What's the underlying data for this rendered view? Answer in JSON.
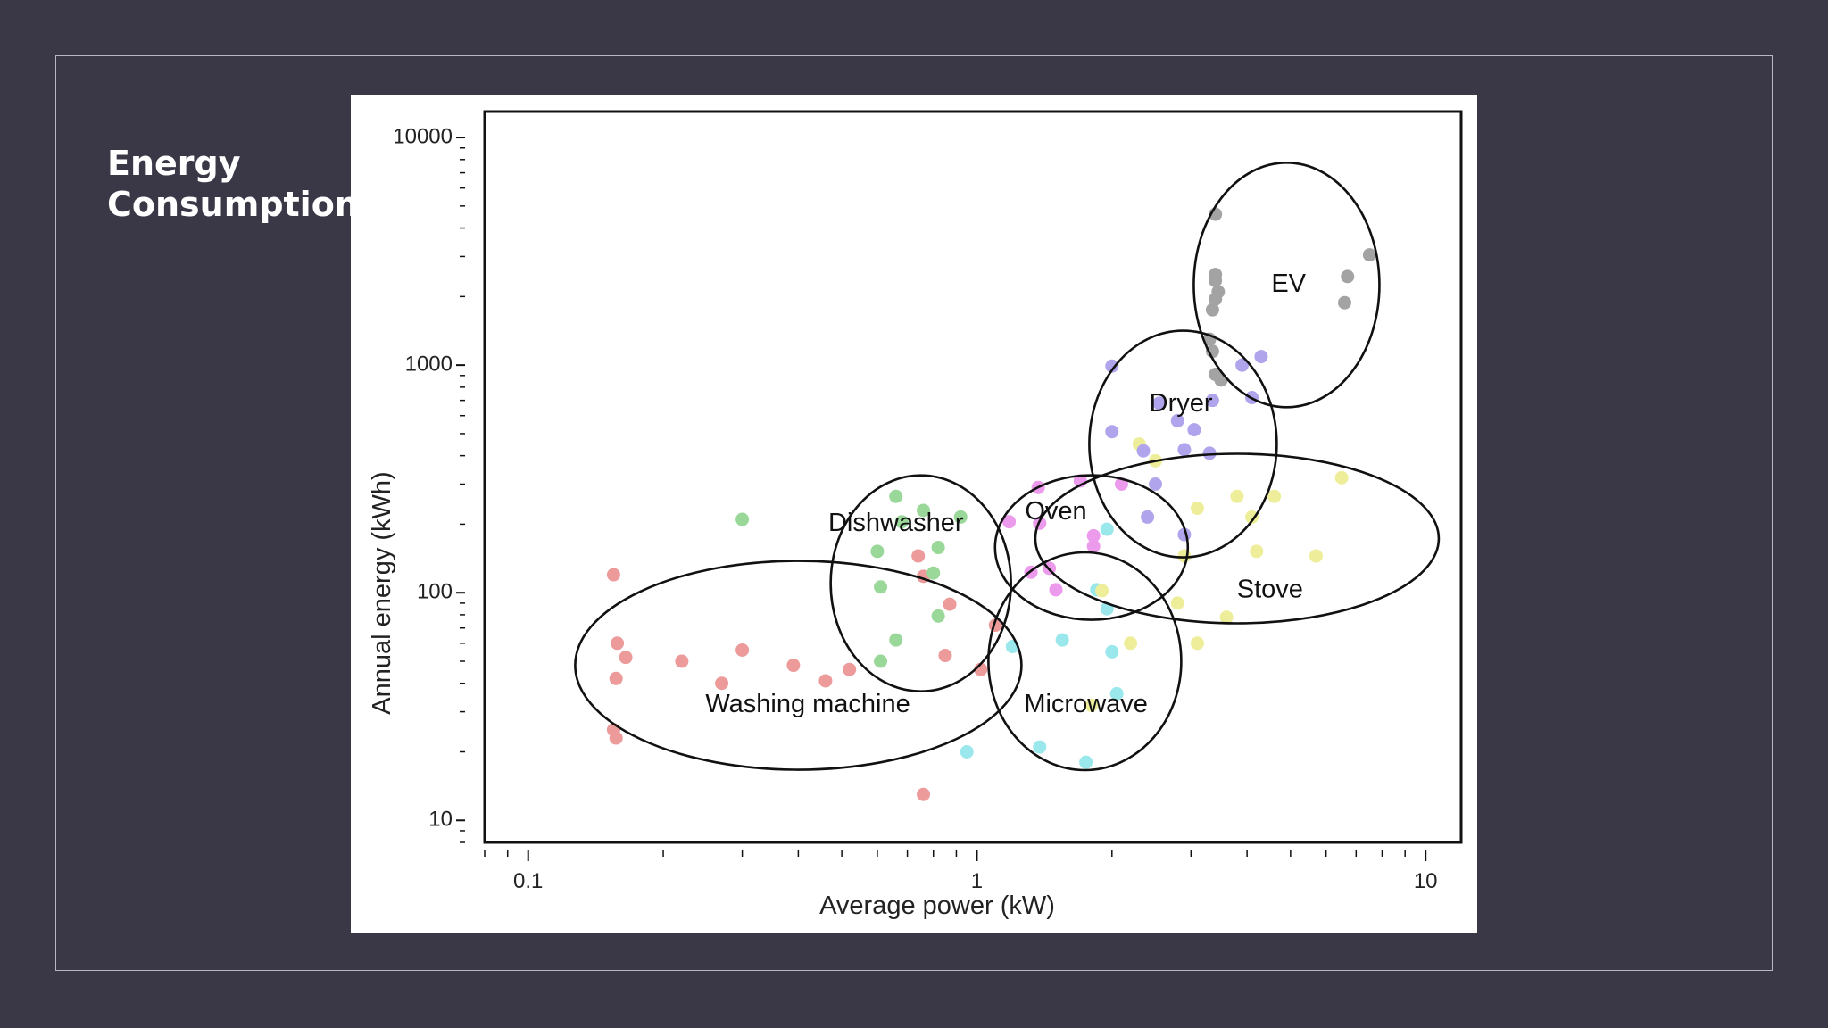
{
  "slide": {
    "title_line1": "Energy",
    "title_line2": "Consumption"
  },
  "chart_data": {
    "type": "scatter",
    "xlabel": "Average power (kW)",
    "ylabel": "Annual energy (kWh)",
    "x_scale": "log",
    "y_scale": "log",
    "xlim": [
      0.08,
      12
    ],
    "ylim": [
      8,
      13000
    ],
    "x_ticks": [
      {
        "value": 0.1,
        "label": "0.1"
      },
      {
        "value": 1,
        "label": "1"
      },
      {
        "value": 10,
        "label": "10"
      }
    ],
    "y_ticks": [
      {
        "value": 10,
        "label": "10"
      },
      {
        "value": 100,
        "label": "100"
      },
      {
        "value": 1000,
        "label": "1000"
      },
      {
        "value": 10000,
        "label": "10000"
      }
    ],
    "grid": false,
    "legend": "none",
    "series": [
      {
        "group": "washing-machine",
        "color": "#ec9a9a",
        "points": [
          [
            0.155,
            120
          ],
          [
            0.158,
            60
          ],
          [
            0.165,
            52
          ],
          [
            0.157,
            42
          ],
          [
            0.155,
            25
          ],
          [
            0.157,
            23
          ],
          [
            0.22,
            50
          ],
          [
            0.27,
            40
          ],
          [
            0.3,
            56
          ],
          [
            0.39,
            48
          ],
          [
            0.46,
            41
          ],
          [
            0.52,
            46
          ],
          [
            0.74,
            145
          ],
          [
            0.76,
            118
          ],
          [
            0.87,
            89
          ],
          [
            0.85,
            53
          ],
          [
            1.02,
            46
          ],
          [
            1.1,
            72
          ],
          [
            0.76,
            13
          ]
        ]
      },
      {
        "group": "dishwasher",
        "color": "#9ad89a",
        "points": [
          [
            0.3,
            210
          ],
          [
            0.66,
            265
          ],
          [
            0.76,
            230
          ],
          [
            0.68,
            205
          ],
          [
            0.6,
            152
          ],
          [
            0.82,
            158
          ],
          [
            0.8,
            122
          ],
          [
            0.61,
            106
          ],
          [
            0.82,
            79
          ],
          [
            0.66,
            62
          ],
          [
            0.61,
            50
          ],
          [
            0.92,
            215
          ]
        ]
      },
      {
        "group": "oven",
        "color": "#ec9aec",
        "points": [
          [
            1.37,
            290
          ],
          [
            1.18,
            205
          ],
          [
            1.38,
            202
          ],
          [
            1.82,
            178
          ],
          [
            1.45,
            128
          ],
          [
            1.32,
            123
          ],
          [
            1.5,
            103
          ],
          [
            1.82,
            160
          ],
          [
            1.7,
            310
          ],
          [
            2.1,
            300
          ]
        ]
      },
      {
        "group": "microwave",
        "color": "#9ae8ec",
        "points": [
          [
            1.2,
            58
          ],
          [
            1.55,
            62
          ],
          [
            1.85,
            103
          ],
          [
            1.95,
            85
          ],
          [
            2.0,
            55
          ],
          [
            2.05,
            36
          ],
          [
            1.38,
            21
          ],
          [
            0.95,
            20
          ],
          [
            1.75,
            18
          ],
          [
            1.95,
            190
          ]
        ]
      },
      {
        "group": "stove",
        "color": "#eeee9a",
        "points": [
          [
            2.3,
            450
          ],
          [
            2.5,
            380
          ],
          [
            3.1,
            235
          ],
          [
            3.8,
            265
          ],
          [
            4.6,
            265
          ],
          [
            6.5,
            320
          ],
          [
            4.1,
            215
          ],
          [
            4.2,
            152
          ],
          [
            5.7,
            145
          ],
          [
            2.9,
            145
          ],
          [
            2.8,
            90
          ],
          [
            3.6,
            78
          ],
          [
            3.1,
            60
          ],
          [
            2.2,
            60
          ],
          [
            1.9,
            102
          ],
          [
            1.8,
            32
          ]
        ]
      },
      {
        "group": "dryer",
        "color": "#b0a4ec",
        "points": [
          [
            2.0,
            990
          ],
          [
            2.55,
            680
          ],
          [
            2.8,
            570
          ],
          [
            3.05,
            520
          ],
          [
            2.0,
            510
          ],
          [
            2.35,
            420
          ],
          [
            2.9,
            425
          ],
          [
            3.3,
            410
          ],
          [
            3.35,
            700
          ],
          [
            3.9,
            1000
          ],
          [
            4.3,
            1090
          ],
          [
            4.1,
            720
          ],
          [
            2.5,
            300
          ],
          [
            2.4,
            215
          ],
          [
            2.9,
            180
          ]
        ]
      },
      {
        "group": "ev",
        "color": "#a3a3a3",
        "points": [
          [
            3.4,
            4600
          ],
          [
            3.4,
            2500
          ],
          [
            3.4,
            2350
          ],
          [
            3.45,
            2100
          ],
          [
            3.4,
            1950
          ],
          [
            3.35,
            1750
          ],
          [
            3.3,
            1300
          ],
          [
            3.35,
            1150
          ],
          [
            3.5,
            860
          ],
          [
            3.4,
            910
          ],
          [
            6.7,
            2450
          ],
          [
            6.6,
            1880
          ],
          [
            7.5,
            3050
          ]
        ]
      }
    ],
    "groups": [
      {
        "name": "Washing machine",
        "label_at": [
          0.42,
          32
        ],
        "ellipse": {
          "center": [
            0.4,
            48
          ],
          "rx": 250,
          "ry": 117
        }
      },
      {
        "name": "Dishwasher",
        "label_at": [
          0.66,
          200
        ],
        "ellipse": {
          "center": [
            0.75,
            110
          ],
          "rx": 101,
          "ry": 121
        }
      },
      {
        "name": "Oven",
        "label_at": [
          1.5,
          225
        ],
        "ellipse": {
          "center": [
            1.8,
            158
          ],
          "rx": 108,
          "ry": 81
        }
      },
      {
        "name": "Microwave",
        "label_at": [
          1.75,
          32
        ],
        "ellipse": {
          "center": [
            1.74,
            50
          ],
          "rx": 108,
          "ry": 122
        }
      },
      {
        "name": "Stove",
        "label_at": [
          4.5,
          102
        ],
        "ellipse": {
          "center": [
            3.8,
            173
          ],
          "rx": 226,
          "ry": 95
        }
      },
      {
        "name": "Dryer",
        "label_at": [
          2.85,
          670
        ],
        "ellipse": {
          "center": [
            2.88,
            450
          ],
          "rx": 105,
          "ry": 127
        }
      },
      {
        "name": "EV",
        "label_at": [
          4.95,
          2250
        ],
        "ellipse": {
          "center": [
            4.9,
            2250
          ],
          "rx": 104,
          "ry": 137
        }
      }
    ]
  }
}
